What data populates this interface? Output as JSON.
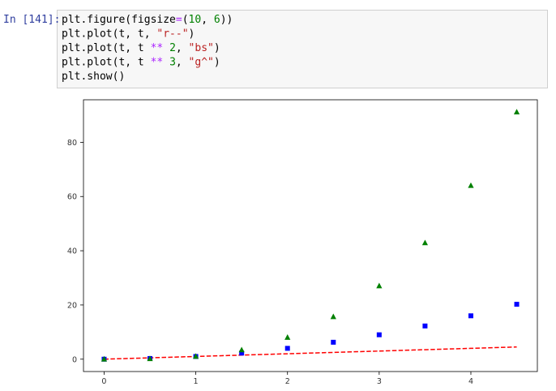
{
  "cell": {
    "prompt": "In [141]:",
    "code": [
      "plt.figure(figsize=(10, 6))",
      "plt.plot(t, t, \"r--\")",
      "plt.plot(t, t ** 2, \"bs\")",
      "plt.plot(t, t ** 3, \"g^\")",
      "plt.show()"
    ]
  },
  "chart_data": {
    "type": "line",
    "x": [
      0,
      0.5,
      1,
      1.5,
      2,
      2.5,
      3,
      3.5,
      4,
      4.5
    ],
    "series": [
      {
        "color": "#ff0000",
        "linestyle": "dashed",
        "marker": "none",
        "values": [
          0,
          0.5,
          1,
          1.5,
          2,
          2.5,
          3,
          3.5,
          4,
          4.5
        ]
      },
      {
        "color": "#0000ff",
        "linestyle": "none",
        "marker": "square",
        "values": [
          0,
          0.25,
          1,
          2.25,
          4,
          6.25,
          9,
          12.25,
          16,
          20.25
        ]
      },
      {
        "color": "#008000",
        "linestyle": "none",
        "marker": "triangle",
        "values": [
          0,
          0.125,
          1,
          3.375,
          8,
          15.625,
          27,
          42.875,
          64,
          91.125
        ]
      }
    ],
    "xlim": [
      -0.225,
      4.725
    ],
    "xticks": [
      0,
      1,
      2,
      3,
      4
    ],
    "ylim": [
      -4.55625,
      95.68125
    ],
    "yticks": [
      0,
      20,
      40,
      60,
      80
    ],
    "grid": false
  }
}
